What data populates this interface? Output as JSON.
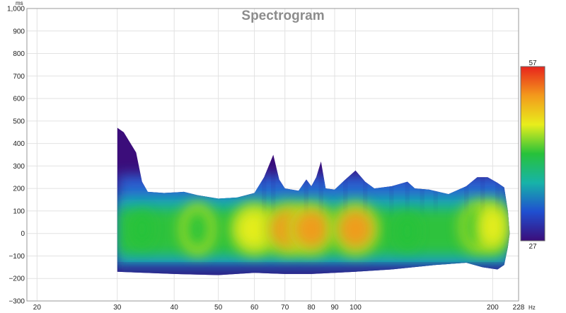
{
  "chart_data": {
    "type": "heatmap",
    "title": "Spectrogram",
    "x_unit": "Hz",
    "y_unit": "ms",
    "x_scale": "log",
    "xlim": [
      19,
      228
    ],
    "ylim": [
      -300,
      1000
    ],
    "x_ticks": [
      {
        "value": 20,
        "label": "20"
      },
      {
        "value": 30,
        "label": "30"
      },
      {
        "value": 40,
        "label": "40"
      },
      {
        "value": 50,
        "label": "50"
      },
      {
        "value": 60,
        "label": "60"
      },
      {
        "value": 70,
        "label": "70"
      },
      {
        "value": 80,
        "label": "80"
      },
      {
        "value": 90,
        "label": "90"
      },
      {
        "value": 100,
        "label": "100"
      },
      {
        "value": 200,
        "label": "200"
      },
      {
        "value": 228,
        "label": "228"
      }
    ],
    "y_ticks": [
      {
        "value": 1000,
        "label": "1,000"
      },
      {
        "value": 900,
        "label": "900"
      },
      {
        "value": 800,
        "label": "800"
      },
      {
        "value": 700,
        "label": "700"
      },
      {
        "value": 600,
        "label": "600"
      },
      {
        "value": 500,
        "label": "500"
      },
      {
        "value": 400,
        "label": "400"
      },
      {
        "value": 300,
        "label": "300"
      },
      {
        "value": 200,
        "label": "200"
      },
      {
        "value": 100,
        "label": "100"
      },
      {
        "value": 0,
        "label": "0"
      },
      {
        "value": -100,
        "label": "−100"
      },
      {
        "value": -200,
        "label": "−200"
      },
      {
        "value": -300,
        "label": "−300"
      }
    ],
    "grid": true,
    "colorbar": {
      "min": 27,
      "max": 57,
      "min_label": "27",
      "max_label": "57",
      "colors": [
        "#3b0d7a",
        "#1f4fd0",
        "#17b3a8",
        "#27c23a",
        "#e8ee1c",
        "#f39a1c",
        "#e8241c"
      ]
    },
    "top_edge": [
      [
        30,
        470
      ],
      [
        31,
        450
      ],
      [
        33,
        360
      ],
      [
        34,
        230
      ],
      [
        35,
        185
      ],
      [
        38,
        180
      ],
      [
        42,
        185
      ],
      [
        45,
        170
      ],
      [
        50,
        155
      ],
      [
        55,
        160
      ],
      [
        60,
        180
      ],
      [
        63,
        250
      ],
      [
        66,
        350
      ],
      [
        68,
        240
      ],
      [
        70,
        200
      ],
      [
        75,
        190
      ],
      [
        78,
        240
      ],
      [
        80,
        210
      ],
      [
        82,
        250
      ],
      [
        84,
        320
      ],
      [
        86,
        200
      ],
      [
        90,
        195
      ],
      [
        95,
        240
      ],
      [
        100,
        280
      ],
      [
        105,
        230
      ],
      [
        110,
        200
      ],
      [
        120,
        210
      ],
      [
        130,
        230
      ],
      [
        135,
        200
      ],
      [
        145,
        195
      ],
      [
        160,
        175
      ],
      [
        175,
        210
      ],
      [
        185,
        250
      ],
      [
        195,
        250
      ],
      [
        205,
        225
      ],
      [
        212,
        205
      ],
      [
        216,
        100
      ],
      [
        218,
        0
      ]
    ],
    "bottom_edge": [
      [
        30,
        -170
      ],
      [
        40,
        -180
      ],
      [
        50,
        -185
      ],
      [
        60,
        -175
      ],
      [
        70,
        -180
      ],
      [
        80,
        -180
      ],
      [
        90,
        -175
      ],
      [
        100,
        -170
      ],
      [
        120,
        -160
      ],
      [
        150,
        -140
      ],
      [
        175,
        -130
      ],
      [
        190,
        -150
      ],
      [
        205,
        -160
      ],
      [
        212,
        -140
      ],
      [
        216,
        -60
      ],
      [
        218,
        0
      ]
    ],
    "hot_spots": [
      {
        "x": 34,
        "y": 20,
        "level": 42
      },
      {
        "x": 45,
        "y": 20,
        "level": 44
      },
      {
        "x": 60,
        "y": 20,
        "level": 49
      },
      {
        "x": 71,
        "y": 20,
        "level": 54
      },
      {
        "x": 80,
        "y": 20,
        "level": 50
      },
      {
        "x": 100,
        "y": 20,
        "level": 50
      },
      {
        "x": 130,
        "y": 10,
        "level": 40
      },
      {
        "x": 185,
        "y": 30,
        "level": 44
      },
      {
        "x": 200,
        "y": 30,
        "level": 46
      }
    ]
  }
}
